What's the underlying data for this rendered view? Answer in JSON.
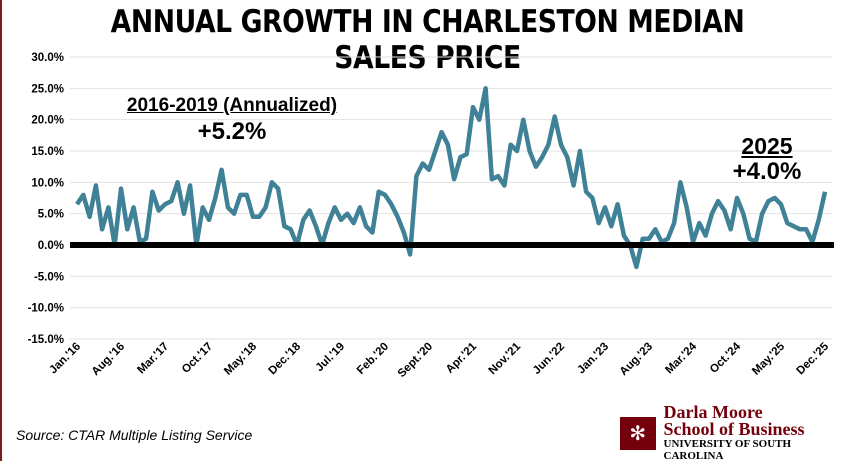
{
  "chart_data": {
    "type": "line",
    "title": "ANNUAL GROWTH IN CHARLESTON MEDIAN SALES PRICE",
    "xlabel": "",
    "ylabel": "",
    "ylim": [
      -15,
      30
    ],
    "y_ticks": [
      "30.0%",
      "25.0%",
      "20.0%",
      "15.0%",
      "10.0%",
      "5.0%",
      "0.0%",
      "-5.0%",
      "-10.0%",
      "-15.0%"
    ],
    "y_tick_values": [
      30,
      25,
      20,
      15,
      10,
      5,
      0,
      -5,
      -10,
      -15
    ],
    "x_tick_labels": [
      "Jan.'16",
      "Aug.'16",
      "Mar.'17",
      "Oct.'17",
      "May.'18",
      "Dec.'18",
      "Jul.'19",
      "Feb.'20",
      "Sept.'20",
      "Apr.'21",
      "Nov.'21",
      "Jun.'22",
      "Jan.'23",
      "Aug.'23",
      "Mar.'24",
      "Oct.'24",
      "May.'25",
      "Dec.'25"
    ],
    "x_tick_every_months": 7,
    "x_start": "2016-01",
    "x_end": "2025-12",
    "grid": true,
    "line_color": "#3f8196",
    "zero_line_color": "#000000",
    "series": [
      {
        "values": [
          6.5,
          8,
          4.5,
          9.5,
          2.5,
          6,
          0,
          9,
          2.5,
          6,
          0.5,
          1,
          8.5,
          5.5,
          6.5,
          7,
          10,
          5,
          9.5,
          0,
          6,
          4,
          7.5,
          12,
          6,
          5,
          8,
          8,
          4.5,
          4.5,
          6,
          10,
          9,
          3,
          2.5,
          0,
          4,
          5.5,
          3,
          0,
          3.5,
          6,
          4,
          5,
          3.5,
          6,
          3,
          2,
          8.5,
          8,
          6.5,
          4.5,
          2,
          -1.5,
          11,
          13,
          12,
          15,
          18,
          16,
          10.5,
          14,
          14.5,
          22,
          20,
          25,
          10.5,
          11,
          9.5,
          16,
          15,
          20,
          15,
          12.5,
          14,
          16,
          20.5,
          16,
          14,
          9.5,
          15,
          8.5,
          7.5,
          3.5,
          6,
          3,
          6.5,
          1.5,
          0,
          -3.5,
          1,
          1,
          2.5,
          0.5,
          1,
          3.5,
          10,
          6,
          0.5,
          3.5,
          1.5,
          5,
          7,
          5.5,
          2.5,
          7.5,
          5,
          1,
          0.5,
          5,
          7,
          7.5,
          6.5,
          3.5,
          3,
          2.5,
          2.5,
          0.5,
          4,
          8.5
        ]
      }
    ],
    "annotations": [
      {
        "label": "2016-2019 (Annualized)",
        "value": "+5.2%"
      },
      {
        "label": "2025",
        "value": "+4.0%"
      }
    ]
  },
  "source": "Source: CTAR Multiple Listing Service",
  "logo": {
    "line1": "Darla Moore",
    "line2": "School of Business",
    "line3": "UNIVERSITY OF SOUTH CAROLINA",
    "color": "#73000a"
  }
}
